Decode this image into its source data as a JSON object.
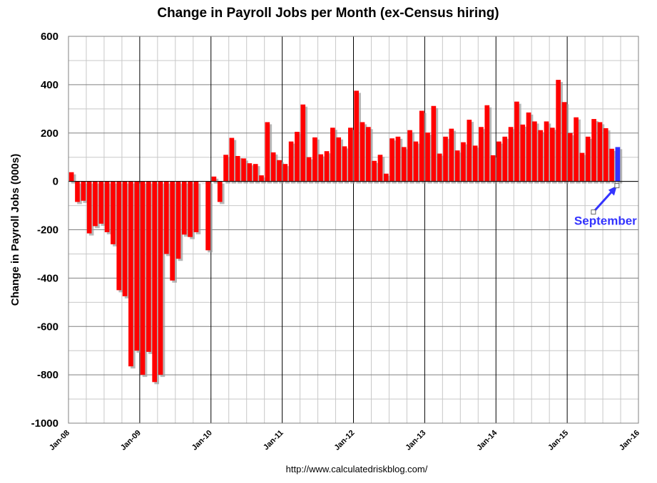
{
  "chart_data": {
    "type": "bar",
    "title": "Change in Payroll Jobs per Month (ex-Census hiring)",
    "ylabel": "Change in Payroll Jobs (000s)",
    "xlabel": "",
    "source": "http://www.calculatedriskblog.com/",
    "ylim": [
      -1000,
      600
    ],
    "yticks": [
      600,
      400,
      200,
      0,
      -200,
      -400,
      -600,
      -800,
      -1000
    ],
    "xtick_labels": [
      "Jan-08",
      "Jan-09",
      "Jan-10",
      "Jan-11",
      "Jan-12",
      "Jan-13",
      "Jan-14",
      "Jan-15",
      "Jan-16"
    ],
    "x_start": "2008-01",
    "x_end": "2016-01",
    "grid": true,
    "colors": {
      "bar": "#ff0000",
      "highlight": "#3333ff",
      "annotation": "#3333ff",
      "grid": "#c8c8c8"
    },
    "annotation": {
      "text": "September",
      "points_to": "2015-09"
    },
    "series": [
      {
        "months": [
          "2008-01",
          "2008-02",
          "2008-03",
          "2008-04",
          "2008-05",
          "2008-06",
          "2008-07",
          "2008-08",
          "2008-09",
          "2008-10",
          "2008-11",
          "2008-12",
          "2009-01",
          "2009-02",
          "2009-03",
          "2009-04",
          "2009-05",
          "2009-06",
          "2009-07",
          "2009-08",
          "2009-09",
          "2009-10",
          "2009-11",
          "2009-12",
          "2010-01",
          "2010-02",
          "2010-03",
          "2010-04",
          "2010-05",
          "2010-06",
          "2010-07",
          "2010-08",
          "2010-09",
          "2010-10",
          "2010-11",
          "2010-12",
          "2011-01",
          "2011-02",
          "2011-03",
          "2011-04",
          "2011-05",
          "2011-06",
          "2011-07",
          "2011-08",
          "2011-09",
          "2011-10",
          "2011-11",
          "2011-12",
          "2012-01",
          "2012-02",
          "2012-03",
          "2012-04",
          "2012-05",
          "2012-06",
          "2012-07",
          "2012-08",
          "2012-09",
          "2012-10",
          "2012-11",
          "2012-12",
          "2013-01",
          "2013-02",
          "2013-03",
          "2013-04",
          "2013-05",
          "2013-06",
          "2013-07",
          "2013-08",
          "2013-09",
          "2013-10",
          "2013-11",
          "2013-12",
          "2014-01",
          "2014-02",
          "2014-03",
          "2014-04",
          "2014-05",
          "2014-06",
          "2014-07",
          "2014-08",
          "2014-09",
          "2014-10",
          "2014-11",
          "2014-12",
          "2015-01",
          "2015-02",
          "2015-03",
          "2015-04",
          "2015-05",
          "2015-06",
          "2015-07",
          "2015-08",
          "2015-09"
        ],
        "values": [
          38,
          -85,
          -80,
          -215,
          -185,
          -175,
          -210,
          -260,
          -450,
          -475,
          -765,
          -700,
          -800,
          -705,
          -830,
          -800,
          -300,
          -410,
          -320,
          -220,
          -230,
          -210,
          0,
          -285,
          20,
          -85,
          110,
          180,
          105,
          95,
          75,
          72,
          25,
          245,
          120,
          88,
          72,
          165,
          205,
          318,
          100,
          182,
          112,
          125,
          222,
          182,
          145,
          222,
          375,
          245,
          225,
          85,
          110,
          32,
          178,
          185,
          142,
          212,
          165,
          292,
          202,
          312,
          115,
          185,
          218,
          128,
          162,
          255,
          148,
          225,
          315,
          108,
          165,
          185,
          225,
          330,
          235,
          285,
          248,
          212,
          248,
          222,
          420,
          328,
          200,
          265,
          118,
          185,
          258,
          245,
          220,
          135,
          142
        ],
        "highlight_index": 92
      }
    ]
  }
}
